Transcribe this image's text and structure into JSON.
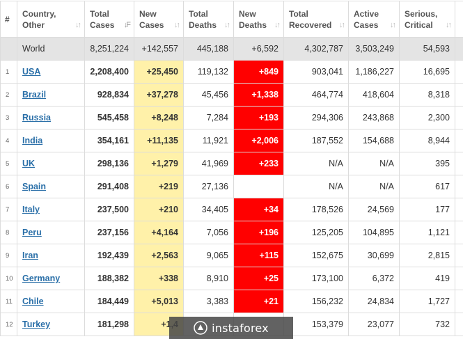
{
  "table": {
    "headers": {
      "idx": "#",
      "country_l1": "Country,",
      "country_l2": "Other",
      "total_cases_l1": "Total",
      "total_cases_l2": "Cases",
      "new_cases_l1": "New",
      "new_cases_l2": "Cases",
      "total_deaths_l1": "Total",
      "total_deaths_l2": "Deaths",
      "new_deaths_l1": "New",
      "new_deaths_l2": "Deaths",
      "total_recovered_l1": "Total",
      "total_recovered_l2": "Recovered",
      "active_cases_l1": "Active",
      "active_cases_l2": "Cases",
      "serious_l1": "Serious,",
      "serious_l2": "Critical",
      "sort_glyph": "↓↑",
      "sort_active_glyph": "↓F"
    },
    "world": {
      "country": "World",
      "total_cases": "8,251,224",
      "new_cases": "+142,557",
      "total_deaths": "445,188",
      "new_deaths": "+6,592",
      "total_recovered": "4,302,787",
      "active_cases": "3,503,249",
      "serious": "54,593"
    },
    "rows": [
      {
        "idx": "1",
        "country": "USA",
        "total_cases": "2,208,400",
        "new_cases": "+25,450",
        "total_deaths": "119,132",
        "new_deaths": "+849",
        "total_recovered": "903,041",
        "active_cases": "1,186,227",
        "serious": "16,695"
      },
      {
        "idx": "2",
        "country": "Brazil",
        "total_cases": "928,834",
        "new_cases": "+37,278",
        "total_deaths": "45,456",
        "new_deaths": "+1,338",
        "total_recovered": "464,774",
        "active_cases": "418,604",
        "serious": "8,318"
      },
      {
        "idx": "3",
        "country": "Russia",
        "total_cases": "545,458",
        "new_cases": "+8,248",
        "total_deaths": "7,284",
        "new_deaths": "+193",
        "total_recovered": "294,306",
        "active_cases": "243,868",
        "serious": "2,300"
      },
      {
        "idx": "4",
        "country": "India",
        "total_cases": "354,161",
        "new_cases": "+11,135",
        "total_deaths": "11,921",
        "new_deaths": "+2,006",
        "total_recovered": "187,552",
        "active_cases": "154,688",
        "serious": "8,944"
      },
      {
        "idx": "5",
        "country": "UK",
        "total_cases": "298,136",
        "new_cases": "+1,279",
        "total_deaths": "41,969",
        "new_deaths": "+233",
        "total_recovered": "N/A",
        "active_cases": "N/A",
        "serious": "395"
      },
      {
        "idx": "6",
        "country": "Spain",
        "total_cases": "291,408",
        "new_cases": "+219",
        "total_deaths": "27,136",
        "new_deaths": "",
        "total_recovered": "N/A",
        "active_cases": "N/A",
        "serious": "617"
      },
      {
        "idx": "7",
        "country": "Italy",
        "total_cases": "237,500",
        "new_cases": "+210",
        "total_deaths": "34,405",
        "new_deaths": "+34",
        "total_recovered": "178,526",
        "active_cases": "24,569",
        "serious": "177"
      },
      {
        "idx": "8",
        "country": "Peru",
        "total_cases": "237,156",
        "new_cases": "+4,164",
        "total_deaths": "7,056",
        "new_deaths": "+196",
        "total_recovered": "125,205",
        "active_cases": "104,895",
        "serious": "1,121"
      },
      {
        "idx": "9",
        "country": "Iran",
        "total_cases": "192,439",
        "new_cases": "+2,563",
        "total_deaths": "9,065",
        "new_deaths": "+115",
        "total_recovered": "152,675",
        "active_cases": "30,699",
        "serious": "2,815"
      },
      {
        "idx": "10",
        "country": "Germany",
        "total_cases": "188,382",
        "new_cases": "+338",
        "total_deaths": "8,910",
        "new_deaths": "+25",
        "total_recovered": "173,100",
        "active_cases": "6,372",
        "serious": "419"
      },
      {
        "idx": "11",
        "country": "Chile",
        "total_cases": "184,449",
        "new_cases": "+5,013",
        "total_deaths": "3,383",
        "new_deaths": "+21",
        "total_recovered": "156,232",
        "active_cases": "24,834",
        "serious": "1,727"
      },
      {
        "idx": "12",
        "country": "Turkey",
        "total_cases": "181,298",
        "new_cases": "+1,4",
        "total_deaths": "",
        "new_deaths": "",
        "total_recovered": "153,379",
        "active_cases": "23,077",
        "serious": "732"
      }
    ]
  },
  "watermark": {
    "text": "instaforex",
    "logo_icon": "instaforex-logo-icon"
  },
  "colors": {
    "new_cases_bg": "#fff1a9",
    "new_deaths_bg": "#ff0000",
    "world_row_bg": "#e4e4e4",
    "link": "#2a6fa8"
  }
}
